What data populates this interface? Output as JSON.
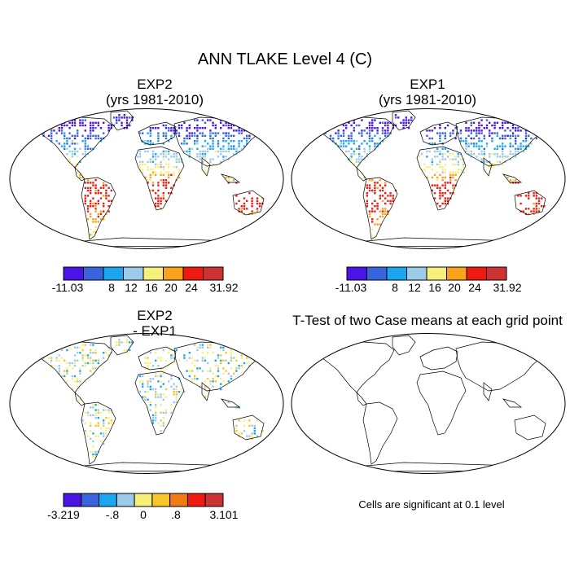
{
  "title": "ANN TLAKE Level 4 (C)",
  "panels": [
    {
      "id": "exp2",
      "title_line1": "EXP2",
      "title_line2": "(yrs 1981-2010)"
    },
    {
      "id": "exp1",
      "title_line1": "EXP1",
      "title_line2": "(yrs 1981-2010)"
    },
    {
      "id": "diff",
      "title_line1": "EXP2",
      "title_line2": "- EXP1"
    },
    {
      "id": "ttest",
      "title_line1": "T-Test of two Case means at each grid point",
      "title_line2": ""
    }
  ],
  "colorbars": {
    "abs": {
      "colors": [
        "#4a14e6",
        "#3a64de",
        "#1ca6ef",
        "#9ccbe9",
        "#f6ef7a",
        "#f8a31b",
        "#ef1a12",
        "#cc3332"
      ],
      "labels": [
        "-11.03",
        "8",
        "12",
        "16",
        "20",
        "24",
        "31.92"
      ]
    },
    "diff": {
      "colors": [
        "#4a14e6",
        "#3a64de",
        "#1ca6ef",
        "#9ccbe9",
        "#f6ef7a",
        "#f8c52a",
        "#f37b16",
        "#ef1a12",
        "#cc3332"
      ],
      "labels": [
        "-3.219",
        "-.8",
        "0",
        ".8",
        "3.101"
      ]
    }
  },
  "significance_note": "Cells are significant at 0.1 level"
}
